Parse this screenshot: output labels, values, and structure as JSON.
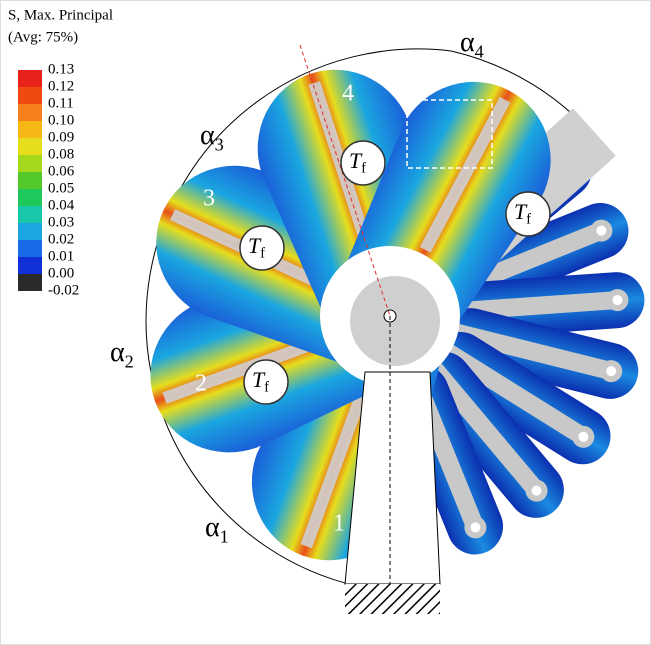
{
  "legend": {
    "title": [
      "S, Max. Principal",
      "(Avg: 75%)"
    ],
    "ticks": [
      "0.13",
      "0.12",
      "0.11",
      "0.10",
      "0.09",
      "0.08",
      "0.06",
      "0.05",
      "0.04",
      "0.03",
      "0.02",
      "0.01",
      "0.00",
      "-0.02"
    ],
    "colors": [
      "#e8221a",
      "#f04a10",
      "#f5801a",
      "#f5b814",
      "#e6dd1c",
      "#a6d81c",
      "#52c82a",
      "#1ec85a",
      "#18c8a8",
      "#1aa6e0",
      "#1a6ae8",
      "#1230d8",
      "#2a2a2a"
    ]
  },
  "angles": [
    {
      "symbol": "α",
      "sub": "1"
    },
    {
      "symbol": "α",
      "sub": "2"
    },
    {
      "symbol": "α",
      "sub": "3"
    },
    {
      "symbol": "α",
      "sub": "4"
    }
  ],
  "segments": [
    "1",
    "2",
    "3",
    "4"
  ],
  "torques": [
    {
      "symbol": "T",
      "sub": "f"
    },
    {
      "symbol": "T",
      "sub": "f"
    },
    {
      "symbol": "T",
      "sub": "f"
    },
    {
      "symbol": "T",
      "sub": "f"
    }
  ]
}
